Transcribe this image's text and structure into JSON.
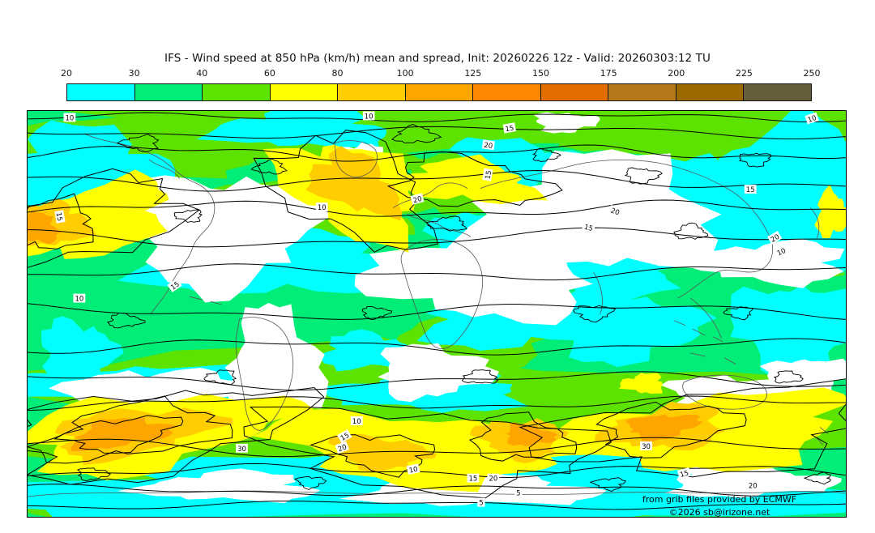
{
  "title": "IFS - Wind speed at 850 hPa (km/h) mean and spread, Init: 20260226 12z - Valid: 20260303:12 TU",
  "colorbar": {
    "ticks": [
      "20",
      "30",
      "40",
      "60",
      "80",
      "100",
      "125",
      "150",
      "175",
      "200",
      "225",
      "250"
    ],
    "colors": [
      "#00FFFF",
      "#00EE78",
      "#5CE300",
      "#FFFF00",
      "#FFCD00",
      "#FFA500",
      "#FF8600",
      "#E26D01",
      "#B5791B",
      "#9A6A00",
      "#665E3A"
    ]
  },
  "map": {
    "fill_colors": {
      "below_20": "#FFFFFF",
      "c20_30": "#00FFFF",
      "c30_40": "#00EE78",
      "c40_60": "#5CE300",
      "c60_80": "#FFFF00",
      "c80_100": "#FFCD00",
      "c100_125": "#FFA500"
    },
    "contour_labels": [
      "10",
      "10",
      "10",
      "20",
      "15",
      "15",
      "20",
      "15",
      "20",
      "10",
      "15",
      "10",
      "15",
      "10",
      "10",
      "15",
      "20",
      "30",
      "30",
      "15",
      "20",
      "10",
      "15",
      "20",
      "5",
      "5",
      "20",
      "15"
    ],
    "attribution_line1": "from grib files provided by ECMWF",
    "attribution_line2": "©2026 sb@irizone.net"
  },
  "chart_data": {
    "type": "heatmap",
    "title": "IFS - Wind speed at 850 hPa (km/h) mean and spread, Init: 20260226 12z - Valid: 20260303:12 TU",
    "model": "IFS",
    "variable": "Wind speed at 850 hPa",
    "units": "km/h",
    "statistic": "ensemble mean (color shading) and ensemble spread (black contours)",
    "init": "20260226 12z",
    "valid": "20260303:12 TU",
    "colorbar_levels": [
      20,
      30,
      40,
      60,
      80,
      100,
      125,
      150,
      175,
      200,
      225,
      250
    ],
    "colorbar_colors": [
      "#00FFFF",
      "#00EE78",
      "#5CE300",
      "#FFFF00",
      "#FFCD00",
      "#FFA500",
      "#FF8600",
      "#E26D01",
      "#B5791B",
      "#9A6A00",
      "#665E3A"
    ],
    "shading_max_on_map": "100-125 km/h (orange cores in storm tracks)",
    "spread_contour_values_visible": [
      5,
      10,
      15,
      20,
      30
    ],
    "legend_position": "top",
    "projection": "global equirectangular world map",
    "attribution": [
      "from grib files provided by ECMWF",
      "©2026 sb@irizone.net"
    ]
  }
}
